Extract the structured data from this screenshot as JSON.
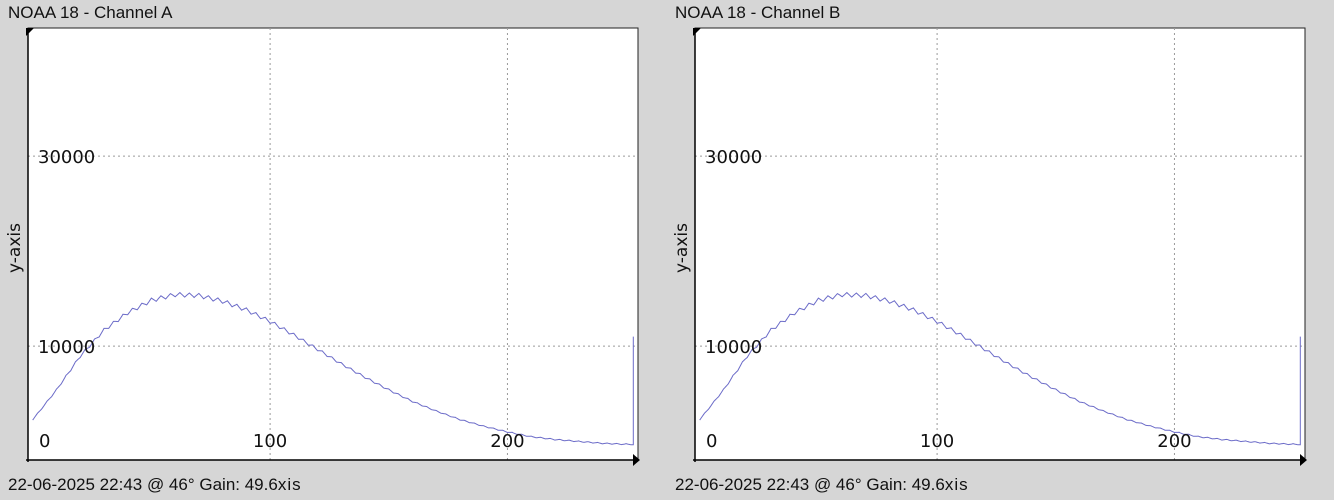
{
  "panels": [
    {
      "title": "NOAA 18 - Channel A",
      "footer_text": "22-06-2025 22:43 @ 46° Gain: 49.6",
      "xlabel": "xis",
      "ylabel": "y-axis"
    },
    {
      "title": "NOAA 18 - Channel B",
      "footer_text": "22-06-2025 22:43 @ 46° Gain: 49.6",
      "xlabel": "xis",
      "ylabel": "y-axis"
    }
  ],
  "colors": {
    "background": "#d6d6d6",
    "plot_area": "#ffffff",
    "series": "#6b6bc8",
    "grid": "#9a9a9a"
  },
  "chart_data": [
    {
      "type": "line",
      "title": "NOAA 18 - Channel A",
      "xlabel": "xis",
      "ylabel": "y-axis",
      "xlim": [
        -2,
        255
      ],
      "ylim": [
        -2000,
        43500
      ],
      "xticks": [
        0,
        100,
        200
      ],
      "yticks": [
        10000,
        30000
      ],
      "grid": true,
      "series": [
        {
          "x": [
            0,
            10,
            20,
            30,
            40,
            50,
            60,
            70,
            80,
            90,
            100,
            110,
            120,
            130,
            140,
            150,
            160,
            170,
            180,
            190,
            200,
            210,
            220,
            230,
            240,
            250,
            252,
            253
          ],
          "y": [
            2200,
            5300,
            8800,
            11500,
            13300,
            14600,
            15200,
            15100,
            14500,
            13600,
            12400,
            11000,
            9500,
            8000,
            6600,
            5300,
            4100,
            3100,
            2200,
            1500,
            900,
            400,
            100,
            -100,
            -300,
            -400,
            -400,
            11000
          ]
        }
      ]
    },
    {
      "type": "line",
      "title": "NOAA 18 - Channel B",
      "xlabel": "xis",
      "ylabel": "y-axis",
      "xlim": [
        -2,
        255
      ],
      "ylim": [
        -2000,
        43500
      ],
      "xticks": [
        0,
        100,
        200
      ],
      "yticks": [
        10000,
        30000
      ],
      "grid": true,
      "series": [
        {
          "x": [
            0,
            10,
            20,
            30,
            40,
            50,
            60,
            70,
            80,
            90,
            100,
            110,
            120,
            130,
            140,
            150,
            160,
            170,
            180,
            190,
            200,
            210,
            220,
            230,
            240,
            250,
            252,
            253
          ],
          "y": [
            2200,
            5300,
            8800,
            11500,
            13300,
            14600,
            15200,
            15100,
            14500,
            13600,
            12400,
            11000,
            9500,
            8000,
            6600,
            5300,
            4100,
            3100,
            2200,
            1500,
            900,
            400,
            100,
            -100,
            -300,
            -400,
            -400,
            11000
          ]
        }
      ]
    }
  ]
}
